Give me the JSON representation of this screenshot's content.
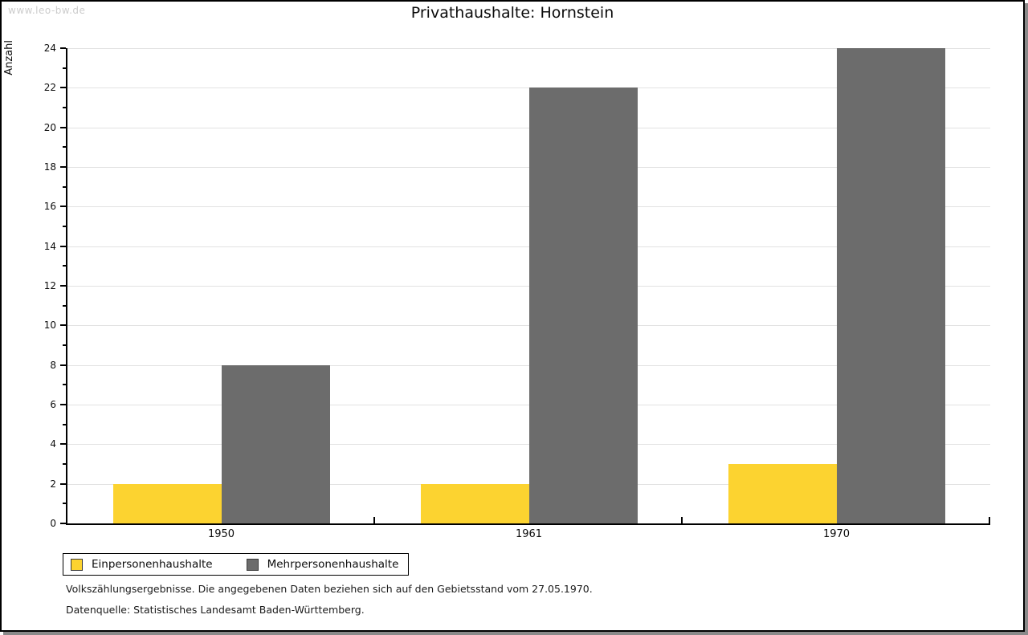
{
  "watermark": "www.leo-bw.de",
  "title": "Privathaushalte: Hornstein",
  "chart_data": {
    "type": "bar",
    "title": "Privathaushalte: Hornstein",
    "categories": [
      "1950",
      "1961",
      "1970"
    ],
    "series": [
      {
        "name": "Einpersonenhaushalte",
        "color": "#fcd330",
        "values": [
          2,
          2,
          3
        ]
      },
      {
        "name": "Mehrpersonenhaushalte",
        "color": "#6c6c6c",
        "values": [
          8,
          22,
          24
        ]
      }
    ],
    "xlabel": "",
    "ylabel": "Anzahl",
    "ylim": [
      0,
      24
    ],
    "ytick_step": 2,
    "grid": true,
    "gridline_color": "#e2e2e2",
    "legend_position": "bottom-left"
  },
  "footnotes": [
    "Volkszählungsergebnisse. Die angegebenen Daten beziehen sich auf den Gebietsstand vom 27.05.1970.",
    "Datenquelle: Statistisches Landesamt Baden-Württemberg."
  ]
}
